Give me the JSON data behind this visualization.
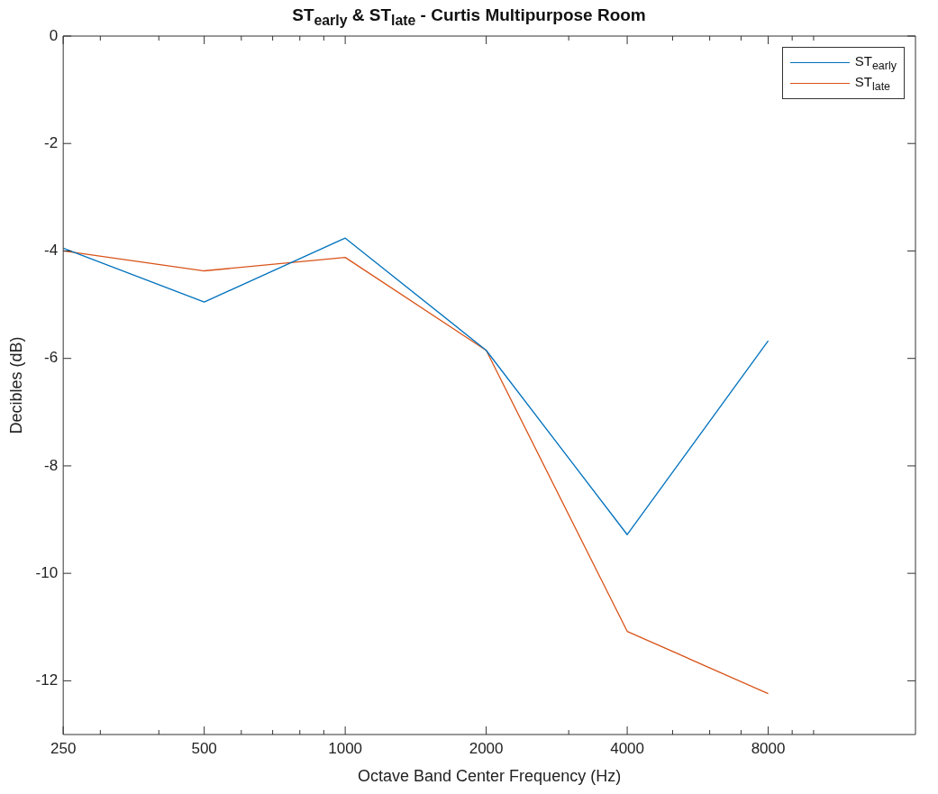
{
  "chart_data": {
    "type": "line",
    "title": "ST$_{early}$ & ST$_{late}$ - Curtis Multipurpose Room",
    "xlabel": "Octave Band Center Frequency (Hz)",
    "ylabel": "Decibles (dB)",
    "x": [
      250,
      500,
      1000,
      2000,
      4000,
      8000
    ],
    "series": [
      {
        "name": "ST$_{early}$",
        "color": "#0072bd",
        "values": [
          -3.95,
          -4.95,
          -3.76,
          -5.85,
          -9.28,
          -5.67
        ]
      },
      {
        "name": "ST$_{late}$",
        "color": "#d95319",
        "values": [
          -4.0,
          -4.37,
          -4.12,
          -5.85,
          -11.08,
          -12.24
        ]
      }
    ],
    "log": "x",
    "xlim": [
      250,
      16500
    ],
    "xticks": [
      250,
      {
        "value": 300,
        "label": null
      },
      {
        "value": 400,
        "label": null
      },
      500,
      {
        "value": 600,
        "label": null
      },
      {
        "value": 700,
        "label": null
      },
      {
        "value": 800,
        "label": null
      },
      {
        "value": 900,
        "label": null
      },
      1000,
      2000,
      {
        "value": 3000,
        "label": null
      },
      4000,
      {
        "value": 5000,
        "label": null
      },
      {
        "value": 6000,
        "label": null
      },
      {
        "value": 7000,
        "label": null
      },
      8000,
      {
        "value": 9000,
        "label": null
      },
      {
        "value": 10000,
        "label": null
      }
    ],
    "ylim": [
      -13,
      0
    ],
    "yticks": [
      -12,
      -10,
      -8,
      -6,
      -4,
      -2,
      0
    ],
    "grid": false,
    "legend": "top right",
    "marker": "none",
    "line_style": "solid"
  }
}
